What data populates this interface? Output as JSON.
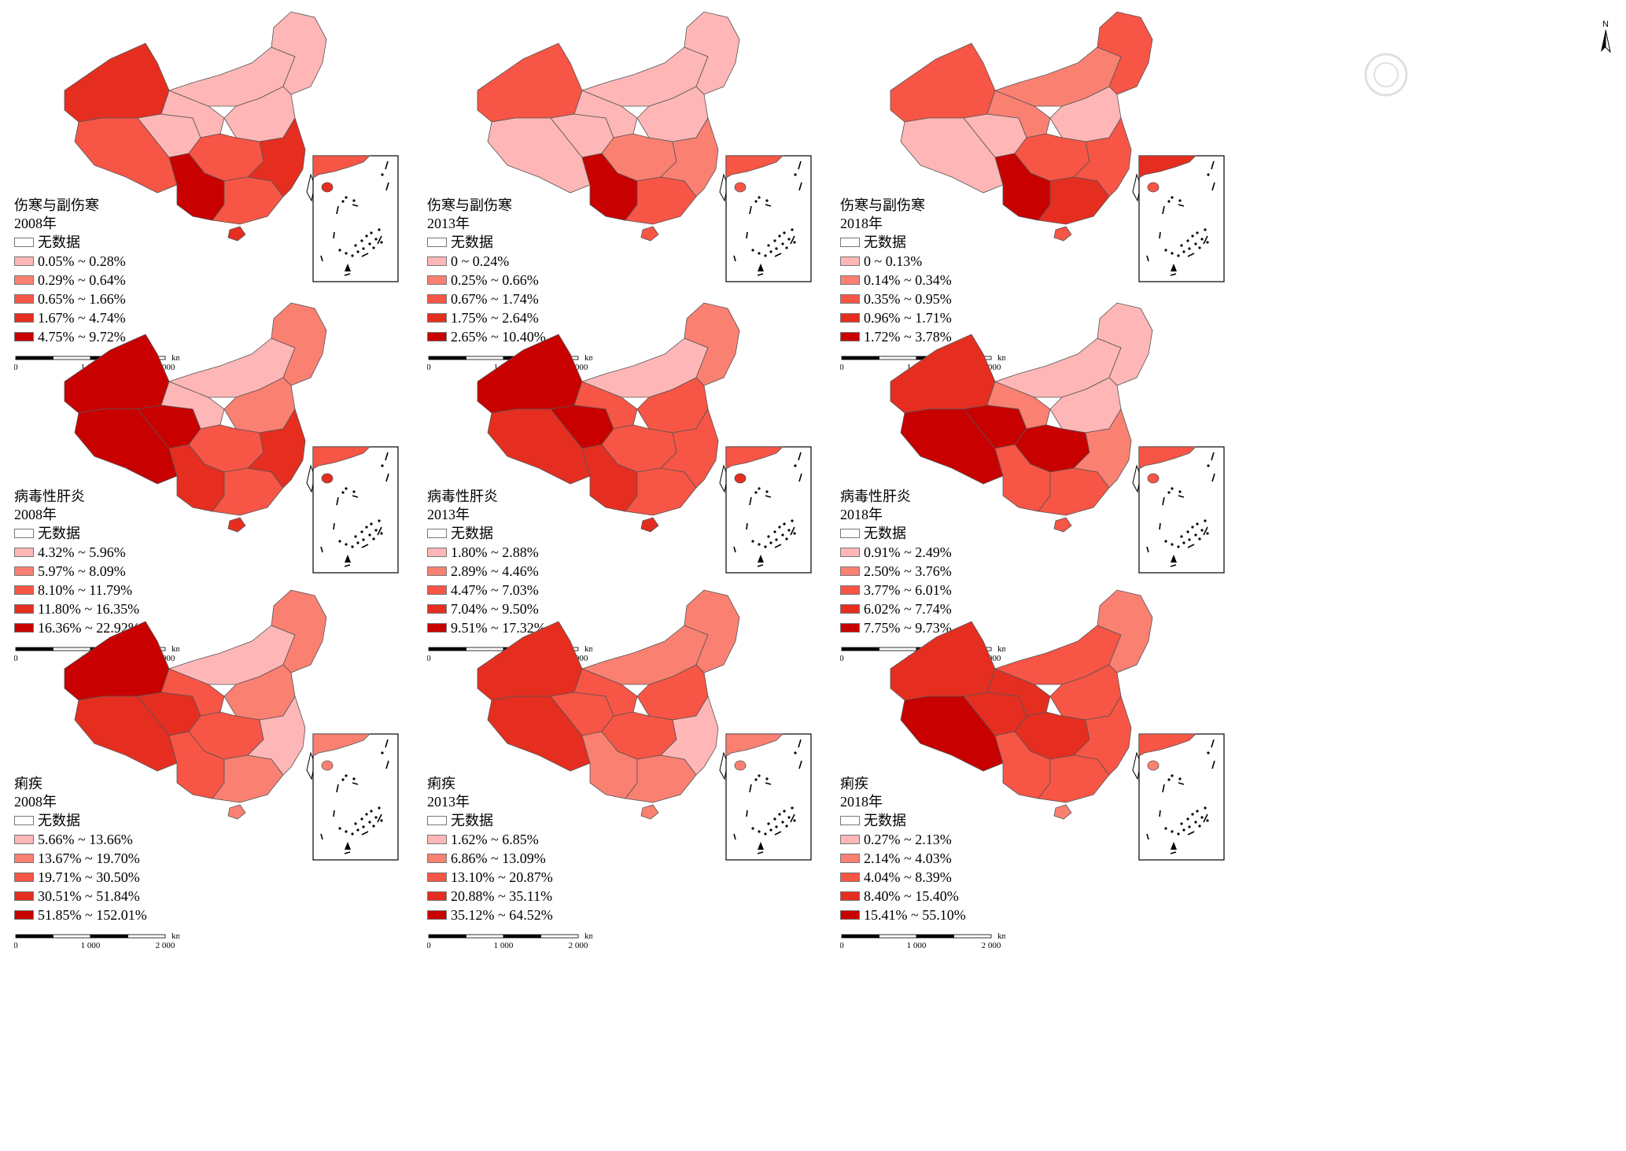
{
  "north_label": "N",
  "watermark_text": "",
  "no_data_label": "无数据",
  "scalebar": {
    "ticks": [
      "0",
      "1 000",
      "2 000"
    ],
    "unit": "km"
  },
  "colors": {
    "no_data": "#ffffff",
    "class1": "#ffb6b6",
    "class2": "#fa8072",
    "class3": "#f75545",
    "class4": "#e52e20",
    "class5": "#c90000",
    "outline": "#555555"
  },
  "panels": [
    {
      "disease": "伤寒与副伤寒",
      "year": "2008年",
      "classes": [
        "0.05% ~ 0.28%",
        "0.29% ~ 0.64%",
        "0.65% ~ 1.66%",
        "1.67% ~ 4.74%",
        "4.75% ~ 9.72%"
      ]
    },
    {
      "disease": "伤寒与副伤寒",
      "year": "2013年",
      "classes": [
        "0 ~ 0.24%",
        "0.25% ~ 0.66%",
        "0.67% ~ 1.74%",
        "1.75% ~ 2.64%",
        "2.65% ~ 10.40%"
      ]
    },
    {
      "disease": "伤寒与副伤寒",
      "year": "2018年",
      "classes": [
        "0 ~ 0.13%",
        "0.14% ~ 0.34%",
        "0.35% ~ 0.95%",
        "0.96% ~ 1.71%",
        "1.72% ~ 3.78%"
      ]
    },
    {
      "disease": "病毒性肝炎",
      "year": "2008年",
      "classes": [
        "4.32% ~ 5.96%",
        "5.97% ~ 8.09%",
        "8.10% ~ 11.79%",
        "11.80% ~ 16.35%",
        "16.36% ~ 22.92%"
      ]
    },
    {
      "disease": "病毒性肝炎",
      "year": "2013年",
      "classes": [
        "1.80% ~ 2.88%",
        "2.89% ~ 4.46%",
        "4.47% ~ 7.03%",
        "7.04% ~ 9.50%",
        "9.51% ~ 17.32%"
      ]
    },
    {
      "disease": "病毒性肝炎",
      "year": "2018年",
      "classes": [
        "0.91% ~ 2.49%",
        "2.50% ~ 3.76%",
        "3.77% ~ 6.01%",
        "6.02% ~ 7.74%",
        "7.75% ~ 9.73%"
      ]
    },
    {
      "disease": "痢疾",
      "year": "2008年",
      "classes": [
        "5.66% ~ 13.66%",
        "13.67% ~ 19.70%",
        "19.71% ~ 30.50%",
        "30.51% ~ 51.84%",
        "51.85% ~ 152.01%"
      ]
    },
    {
      "disease": "痢疾",
      "year": "2013年",
      "classes": [
        "1.62% ~ 6.85%",
        "6.86% ~ 13.09%",
        "13.10% ~ 20.87%",
        "20.88% ~ 35.11%",
        "35.12% ~ 64.52%"
      ]
    },
    {
      "disease": "痢疾",
      "year": "2018年",
      "classes": [
        "0.27% ~ 2.13%",
        "2.14% ~ 4.03%",
        "4.04% ~ 8.39%",
        "8.40% ~ 15.40%",
        "15.41% ~ 55.10%"
      ]
    }
  ],
  "region_classes": [
    {
      "xinjiang": 4,
      "tibet": 3,
      "qinghai": 1,
      "gansu": 1,
      "innermongolia": 1,
      "northeast": 1,
      "north": 1,
      "central": 3,
      "southwest": 5,
      "south": 3,
      "east": 4,
      "hainan": 4
    },
    {
      "xinjiang": 3,
      "tibet": 1,
      "qinghai": 1,
      "gansu": 1,
      "innermongolia": 1,
      "northeast": 1,
      "north": 1,
      "central": 2,
      "southwest": 5,
      "south": 3,
      "east": 2,
      "hainan": 3
    },
    {
      "xinjiang": 3,
      "tibet": 1,
      "qinghai": 1,
      "gansu": 2,
      "innermongolia": 2,
      "northeast": 3,
      "north": 1,
      "central": 3,
      "southwest": 5,
      "south": 4,
      "east": 3,
      "hainan": 3
    },
    {
      "xinjiang": 5,
      "tibet": 5,
      "qinghai": 5,
      "gansu": 1,
      "innermongolia": 1,
      "northeast": 2,
      "north": 2,
      "central": 3,
      "southwest": 4,
      "south": 3,
      "east": 4,
      "hainan": 4
    },
    {
      "xinjiang": 5,
      "tibet": 4,
      "qinghai": 5,
      "gansu": 3,
      "innermongolia": 1,
      "northeast": 2,
      "north": 3,
      "central": 3,
      "southwest": 4,
      "south": 3,
      "east": 3,
      "hainan": 4
    },
    {
      "xinjiang": 4,
      "tibet": 5,
      "qinghai": 5,
      "gansu": 2,
      "innermongolia": 1,
      "northeast": 1,
      "north": 1,
      "central": 5,
      "southwest": 3,
      "south": 3,
      "east": 2,
      "hainan": 3
    },
    {
      "xinjiang": 5,
      "tibet": 4,
      "qinghai": 4,
      "gansu": 3,
      "innermongolia": 1,
      "northeast": 2,
      "north": 2,
      "central": 3,
      "southwest": 3,
      "south": 2,
      "east": 1,
      "hainan": 2
    },
    {
      "xinjiang": 4,
      "tibet": 4,
      "qinghai": 3,
      "gansu": 3,
      "innermongolia": 2,
      "northeast": 2,
      "north": 3,
      "central": 3,
      "southwest": 2,
      "south": 2,
      "east": 1,
      "hainan": 2
    },
    {
      "xinjiang": 4,
      "tibet": 5,
      "qinghai": 4,
      "gansu": 4,
      "innermongolia": 3,
      "northeast": 2,
      "north": 3,
      "central": 4,
      "southwest": 3,
      "south": 3,
      "east": 3,
      "hainan": 2
    }
  ]
}
